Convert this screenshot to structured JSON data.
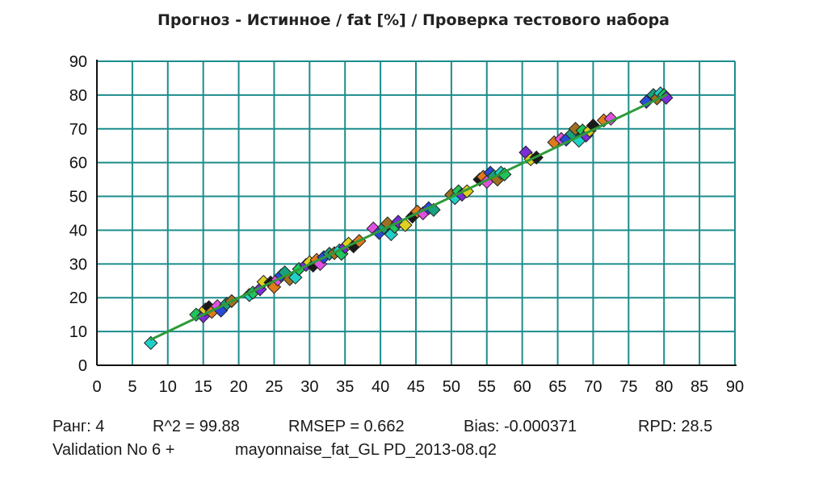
{
  "chart_data": {
    "type": "scatter",
    "title": "Прогноз - Истинное  /  fat [%]  /  Проверка тестового набора",
    "xlabel": "",
    "ylabel": "",
    "xlim": [
      0,
      90
    ],
    "ylim": [
      0,
      90
    ],
    "x_ticks": [
      "0",
      "5",
      "10",
      "15",
      "20",
      "25",
      "30",
      "35",
      "40",
      "45",
      "50",
      "55",
      "60",
      "65",
      "70",
      "75",
      "80",
      "85",
      "90"
    ],
    "y_ticks": [
      "0",
      "10",
      "20",
      "30",
      "40",
      "50",
      "60",
      "70",
      "80",
      "90"
    ],
    "grid": true,
    "fit_line": {
      "x": [
        7.5,
        80.5
      ],
      "y": [
        7.5,
        80.2
      ],
      "color": "#2e9a3a"
    },
    "point_colors": [
      "#1fd0c8",
      "#1fc45a",
      "#7a2dd8",
      "#e0d020",
      "#1a1a1a",
      "#e07a1a",
      "#e050e0",
      "#2a4ad8",
      "#18a080",
      "#a07020"
    ],
    "points": [
      [
        7.6,
        6.6
      ],
      [
        14.0,
        15.0
      ],
      [
        15.0,
        14.5
      ],
      [
        15.3,
        16.5
      ],
      [
        15.8,
        17.2
      ],
      [
        16.2,
        15.8
      ],
      [
        17.0,
        17.5
      ],
      [
        17.5,
        16.2
      ],
      [
        18.3,
        18.2
      ],
      [
        19.0,
        19.0
      ],
      [
        21.5,
        20.8
      ],
      [
        22.0,
        21.5
      ],
      [
        23.0,
        22.5
      ],
      [
        23.5,
        24.7
      ],
      [
        24.5,
        24.5
      ],
      [
        25.0,
        23.2
      ],
      [
        25.5,
        25.4
      ],
      [
        26.0,
        26.6
      ],
      [
        26.5,
        27.5
      ],
      [
        27.2,
        25.5
      ],
      [
        28.0,
        26.0
      ],
      [
        28.5,
        28.5
      ],
      [
        29.5,
        29.7
      ],
      [
        30.0,
        30.5
      ],
      [
        30.5,
        29.5
      ],
      [
        31.0,
        31.2
      ],
      [
        31.5,
        30.0
      ],
      [
        32.0,
        32.0
      ],
      [
        32.8,
        33.0
      ],
      [
        33.5,
        33.2
      ],
      [
        34.2,
        34.0
      ],
      [
        34.5,
        33.0
      ],
      [
        35.0,
        35.0
      ],
      [
        35.5,
        36.0
      ],
      [
        36.2,
        35.2
      ],
      [
        37.0,
        36.8
      ],
      [
        39.0,
        40.5
      ],
      [
        39.8,
        39.2
      ],
      [
        40.5,
        40.8
      ],
      [
        41.0,
        42.0
      ],
      [
        41.5,
        38.8
      ],
      [
        42.0,
        41.0
      ],
      [
        42.5,
        42.5
      ],
      [
        43.5,
        41.5
      ],
      [
        44.5,
        44.0
      ],
      [
        45.2,
        45.5
      ],
      [
        46.0,
        45.0
      ],
      [
        46.8,
        46.5
      ],
      [
        47.5,
        46.0
      ],
      [
        50.0,
        50.5
      ],
      [
        50.5,
        49.5
      ],
      [
        51.0,
        51.5
      ],
      [
        51.5,
        50.5
      ],
      [
        52.2,
        51.5
      ],
      [
        54.0,
        55.0
      ],
      [
        54.5,
        55.8
      ],
      [
        55.0,
        54.3
      ],
      [
        55.5,
        57.0
      ],
      [
        56.0,
        56.0
      ],
      [
        56.5,
        55.0
      ],
      [
        57.0,
        57.0
      ],
      [
        57.5,
        56.5
      ],
      [
        60.5,
        63.0
      ],
      [
        61.2,
        61.0
      ],
      [
        62.0,
        61.5
      ],
      [
        64.5,
        66.0
      ],
      [
        65.5,
        67.0
      ],
      [
        66.2,
        66.8
      ],
      [
        67.0,
        68.5
      ],
      [
        67.5,
        70.0
      ],
      [
        68.0,
        66.5
      ],
      [
        68.5,
        69.5
      ],
      [
        69.0,
        68.0
      ],
      [
        69.5,
        69.5
      ],
      [
        70.0,
        71.0
      ],
      [
        71.5,
        72.5
      ],
      [
        72.5,
        73.0
      ],
      [
        77.5,
        78.0
      ],
      [
        78.5,
        80.0
      ],
      [
        79.0,
        79.0
      ],
      [
        79.5,
        80.5
      ],
      [
        80.0,
        80.0
      ],
      [
        80.3,
        79.2
      ]
    ]
  },
  "stats": {
    "rank": "Ранг: 4",
    "r2": "R^2 = 99.88",
    "rmsep": "RMSEP = 0.662",
    "bias": "Bias: -0.000371",
    "rpd": "RPD: 28.5"
  },
  "validation": {
    "label": "Validation No 6 +",
    "file": "mayonnaise_fat_GL PD_2013-08.q2"
  }
}
